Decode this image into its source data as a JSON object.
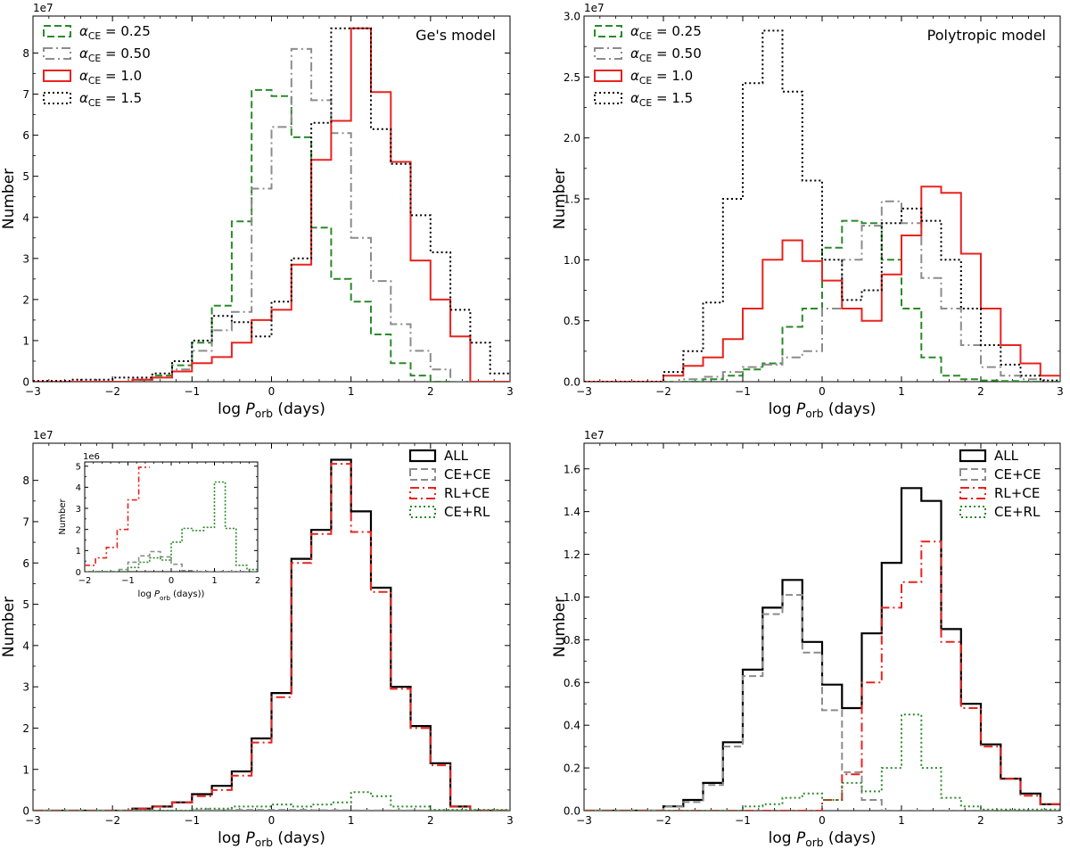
{
  "chart_data": [
    {
      "id": "top-left",
      "type": "step-histogram",
      "annotation": "Ge's model",
      "xlabel": "log  P_orb (days)",
      "ylabel": "Number",
      "y_offset_label": "1e7",
      "xlim": [
        -3,
        3
      ],
      "ylim": [
        0,
        8.9
      ],
      "xticks": [
        -3,
        -2,
        -1,
        0,
        1,
        2,
        3
      ],
      "xtick_labels": [
        "−3",
        "−2",
        "−1",
        "0",
        "1",
        "2",
        "3"
      ],
      "yticks": [
        0,
        1,
        2,
        3,
        4,
        5,
        6,
        7,
        8
      ],
      "ytick_labels": [
        "0",
        "1",
        "2",
        "3",
        "4",
        "5",
        "6",
        "7",
        "8"
      ],
      "legend_position": "top-left",
      "series": [
        {
          "name": "α_CE = 0.25",
          "label_base": "α",
          "label_sub": "CE",
          "label_tail": " = 0.25",
          "color": "#2a8a2a",
          "dash": "8,4",
          "width": 2,
          "edges": [
            -3,
            -1.75,
            -1.5,
            -1.25,
            -1,
            -0.75,
            -0.5,
            -0.25,
            0,
            0.25,
            0.5,
            0.75,
            1,
            1.25,
            1.5,
            1.75,
            2,
            3
          ],
          "values": [
            0,
            0.05,
            0.15,
            0.4,
            0.95,
            1.85,
            3.9,
            7.1,
            6.95,
            5.95,
            3.75,
            2.5,
            1.95,
            1.15,
            0.45,
            0.15,
            0
          ]
        },
        {
          "name": "α_CE = 0.50",
          "label_base": "α",
          "label_sub": "CE",
          "label_tail": " = 0.50",
          "color": "#8c8c8c",
          "dash": "10,4,2,4",
          "width": 2,
          "edges": [
            -3,
            -1.75,
            -1.5,
            -1.25,
            -1,
            -0.75,
            -0.5,
            -0.25,
            0,
            0.25,
            0.5,
            0.75,
            1,
            1.25,
            1.5,
            1.75,
            2,
            2.25,
            3
          ],
          "values": [
            0,
            0.05,
            0.1,
            0.3,
            0.75,
            1.25,
            1.7,
            4.7,
            6.2,
            8.1,
            6.85,
            6.05,
            3.5,
            2.45,
            1.4,
            0.75,
            0.3,
            0
          ]
        },
        {
          "name": "α_CE = 1.0",
          "label_base": "α",
          "label_sub": "CE",
          "label_tail": " = 1.0",
          "color": "#e8231f",
          "dash": "",
          "width": 2,
          "edges": [
            -3,
            -1.75,
            -1.5,
            -1.25,
            -1,
            -0.75,
            -0.5,
            -0.25,
            0,
            0.25,
            0.5,
            0.75,
            1,
            1.25,
            1.5,
            1.75,
            2,
            2.25,
            2.5,
            3
          ],
          "values": [
            0,
            0.05,
            0.1,
            0.25,
            0.45,
            0.6,
            0.95,
            1.5,
            1.75,
            2.85,
            5.4,
            6.35,
            8.6,
            7.05,
            5.35,
            2.95,
            2,
            1.1,
            0
          ]
        },
        {
          "name": "α_CE = 1.5",
          "label_base": "α",
          "label_sub": "CE",
          "label_tail": " = 1.5",
          "color": "#000000",
          "dash": "2,3",
          "width": 2,
          "edges": [
            -3,
            -2.5,
            -2,
            -1.5,
            -1.25,
            -1,
            -0.75,
            -0.5,
            -0.25,
            0,
            0.25,
            0.5,
            0.75,
            1,
            1.25,
            1.5,
            1.75,
            2,
            2.25,
            2.5,
            2.75,
            3
          ],
          "values": [
            0.02,
            0.05,
            0.1,
            0.2,
            0.5,
            1.0,
            1.6,
            1.45,
            1.1,
            1.95,
            3.0,
            6.3,
            8.6,
            8.6,
            6.15,
            5.3,
            4.05,
            3.15,
            1.75,
            0.95,
            0.2
          ]
        }
      ]
    },
    {
      "id": "top-right",
      "type": "step-histogram",
      "annotation": "Polytropic model",
      "xlabel": "log  P_orb (days)",
      "ylabel": "Number",
      "y_offset_label": "1e7",
      "xlim": [
        -3,
        3
      ],
      "ylim": [
        0,
        3.0
      ],
      "xticks": [
        -3,
        -2,
        -1,
        0,
        1,
        2,
        3
      ],
      "xtick_labels": [
        "−3",
        "−2",
        "−1",
        "0",
        "1",
        "2",
        "3"
      ],
      "yticks": [
        0,
        0.5,
        1.0,
        1.5,
        2.0,
        2.5,
        3.0
      ],
      "ytick_labels": [
        "0.0",
        "0.5",
        "1.0",
        "1.5",
        "2.0",
        "2.5",
        "3.0"
      ],
      "legend_position": "top-left",
      "series": [
        {
          "name": "α_CE = 0.25",
          "label_base": "α",
          "label_sub": "CE",
          "label_tail": " = 0.25",
          "color": "#2a8a2a",
          "dash": "8,4",
          "width": 2,
          "edges": [
            -3,
            -1.5,
            -1.25,
            -1,
            -0.75,
            -0.5,
            -0.25,
            0,
            0.25,
            0.5,
            0.75,
            1,
            1.25,
            1.5,
            1.75,
            2,
            2.25,
            2.5,
            3
          ],
          "values": [
            0,
            0.02,
            0.05,
            0.1,
            0.15,
            0.45,
            0.6,
            1.1,
            1.32,
            1.3,
            1.0,
            0.6,
            0.2,
            0.05,
            0.02,
            0.01,
            0.005,
            0
          ]
        },
        {
          "name": "α_CE = 0.50",
          "label_base": "α",
          "label_sub": "CE",
          "label_tail": " = 0.50",
          "color": "#8c8c8c",
          "dash": "10,4,2,4",
          "width": 2,
          "edges": [
            -3,
            -1.75,
            -1.5,
            -1.25,
            -1,
            -0.75,
            -0.5,
            -0.25,
            0,
            0.25,
            0.5,
            0.75,
            1,
            1.25,
            1.5,
            1.75,
            2,
            2.25,
            2.5,
            2.75,
            3
          ],
          "values": [
            0,
            0.02,
            0.04,
            0.08,
            0.12,
            0.14,
            0.2,
            0.25,
            0.6,
            1.0,
            1.28,
            1.48,
            1.3,
            0.85,
            0.6,
            0.3,
            0.12,
            0.05,
            0.02,
            0
          ]
        },
        {
          "name": "α_CE = 1.0",
          "label_base": "α",
          "label_sub": "CE",
          "label_tail": " = 1.0",
          "color": "#e8231f",
          "dash": "",
          "width": 2,
          "edges": [
            -3,
            -2,
            -1.75,
            -1.5,
            -1.25,
            -1,
            -0.75,
            -0.5,
            -0.25,
            0,
            0.25,
            0.5,
            0.75,
            1,
            1.25,
            1.5,
            1.75,
            2,
            2.25,
            2.5,
            2.75,
            3
          ],
          "values": [
            0,
            0.05,
            0.13,
            0.2,
            0.35,
            0.6,
            1.0,
            1.16,
            0.99,
            0.83,
            0.6,
            0.5,
            0.88,
            1.2,
            1.6,
            1.55,
            1.05,
            0.6,
            0.3,
            0.15,
            0.05
          ]
        },
        {
          "name": "α_CE = 1.5",
          "label_base": "α",
          "label_sub": "CE",
          "label_tail": " = 1.5",
          "color": "#000000",
          "dash": "2,3",
          "width": 2,
          "edges": [
            -3,
            -2,
            -1.75,
            -1.5,
            -1.25,
            -1,
            -0.75,
            -0.5,
            -0.25,
            0,
            0.25,
            0.5,
            0.75,
            1,
            1.25,
            1.5,
            1.75,
            2,
            2.25,
            2.5,
            2.75,
            3
          ],
          "values": [
            0,
            0.08,
            0.25,
            0.65,
            1.5,
            2.45,
            2.88,
            2.38,
            1.65,
            1.0,
            0.67,
            0.75,
            1.3,
            1.42,
            1.32,
            1.0,
            0.6,
            0.3,
            0.14,
            0.05,
            0.01
          ]
        }
      ]
    },
    {
      "id": "bottom-left",
      "type": "step-histogram",
      "xlabel": "log  P_orb (days)",
      "ylabel": "Number",
      "y_offset_label": "1e7",
      "xlim": [
        -3,
        3
      ],
      "ylim": [
        0,
        8.9
      ],
      "xticks": [
        -3,
        -2,
        -1,
        0,
        1,
        2,
        3
      ],
      "xtick_labels": [
        "−3",
        "−2",
        "−1",
        "0",
        "1",
        "2",
        "3"
      ],
      "yticks": [
        0,
        1,
        2,
        3,
        4,
        5,
        6,
        7,
        8
      ],
      "ytick_labels": [
        "0",
        "1",
        "2",
        "3",
        "4",
        "5",
        "6",
        "7",
        "8"
      ],
      "legend_position": "top-right",
      "series": [
        {
          "name": "ALL",
          "color": "#000000",
          "dash": "",
          "width": 2.2,
          "edges": [
            -3,
            -1.75,
            -1.5,
            -1.25,
            -1,
            -0.75,
            -0.5,
            -0.25,
            0,
            0.25,
            0.5,
            0.75,
            1,
            1.25,
            1.5,
            1.75,
            2,
            2.25,
            2.5,
            3
          ],
          "values": [
            0,
            0.05,
            0.1,
            0.2,
            0.4,
            0.6,
            0.95,
            1.75,
            2.85,
            6.1,
            6.8,
            8.5,
            7.25,
            5.4,
            3.0,
            2.05,
            1.15,
            0.1,
            0
          ]
        },
        {
          "name": "CE+CE",
          "color": "#8c8c8c",
          "dash": "8,4",
          "width": 2,
          "edges": [
            -3,
            -1,
            -0.5,
            0,
            0.5,
            1,
            3
          ],
          "values": [
            0,
            0.01,
            0.02,
            0.02,
            0.01,
            0.005
          ]
        },
        {
          "name": "RL+CE",
          "color": "#e8231f",
          "dash": "10,4,2,4",
          "width": 2,
          "edges": [
            -3,
            -1.75,
            -1.5,
            -1.25,
            -1,
            -0.75,
            -0.5,
            -0.25,
            0,
            0.25,
            0.5,
            0.75,
            1,
            1.25,
            1.5,
            1.75,
            2,
            2.25,
            2.5,
            3
          ],
          "values": [
            0,
            0.05,
            0.1,
            0.2,
            0.35,
            0.5,
            0.85,
            1.65,
            2.75,
            6.0,
            6.7,
            8.4,
            6.75,
            5.3,
            2.95,
            2.0,
            1.1,
            0.1,
            0
          ]
        },
        {
          "name": "CE+RL",
          "color": "#2a8a2a",
          "dash": "2,3",
          "width": 2,
          "edges": [
            -3,
            -1,
            -0.5,
            0,
            0.25,
            0.5,
            0.75,
            1,
            1.25,
            1.5,
            2,
            3
          ],
          "values": [
            0,
            0.05,
            0.1,
            0.15,
            0.1,
            0.15,
            0.2,
            0.45,
            0.35,
            0.1,
            0.02
          ]
        }
      ],
      "inset": {
        "xlabel": "log  P_orb (days))",
        "ylabel": "Number",
        "y_offset_label": "1e6",
        "xlim": [
          -2,
          2
        ],
        "ylim": [
          0,
          5.2
        ],
        "xticks": [
          -2,
          -1,
          0,
          1,
          2
        ],
        "xtick_labels": [
          "−2",
          "−1",
          "0",
          "1",
          "2"
        ],
        "yticks": [
          0,
          1,
          2,
          3,
          4,
          5
        ],
        "ytick_labels": [
          "0",
          "1",
          "2",
          "3",
          "4",
          "5"
        ],
        "series": [
          {
            "name": "RL+CE",
            "color": "#e8231f",
            "dash": "6,3,2,3",
            "width": 1.6,
            "edges": [
              -2,
              -1.75,
              -1.5,
              -1.25,
              -1,
              -0.75,
              -0.5
            ],
            "values": [
              0.3,
              0.65,
              1.15,
              2.0,
              3.4,
              4.95
            ]
          },
          {
            "name": "CE+CE",
            "color": "#8c8c8c",
            "dash": "5,3",
            "width": 1.6,
            "edges": [
              -2,
              -1.25,
              -1,
              -0.75,
              -0.5,
              -0.25,
              0,
              0.25,
              0.5,
              2
            ],
            "values": [
              0,
              0.1,
              0.45,
              0.75,
              0.95,
              0.7,
              0.35,
              0.05,
              0
            ]
          },
          {
            "name": "CE+RL",
            "color": "#2a8a2a",
            "dash": "2,2",
            "width": 1.6,
            "edges": [
              -2,
              -1,
              -0.75,
              -0.5,
              -0.25,
              0,
              0.25,
              0.5,
              0.75,
              1,
              1.25,
              1.5,
              1.75,
              2
            ],
            "values": [
              0,
              0.2,
              0.45,
              0.65,
              0.55,
              1.4,
              2.05,
              1.95,
              2.1,
              4.25,
              2.05,
              0.3,
              0.1
            ]
          }
        ]
      }
    },
    {
      "id": "bottom-right",
      "type": "step-histogram",
      "xlabel": "log  P_orb (days)",
      "ylabel": "Number",
      "y_offset_label": "1e7",
      "xlim": [
        -3,
        3
      ],
      "ylim": [
        0,
        1.72
      ],
      "xticks": [
        -3,
        -2,
        -1,
        0,
        1,
        2,
        3
      ],
      "xtick_labels": [
        "−3",
        "−2",
        "−1",
        "0",
        "1",
        "2",
        "3"
      ],
      "yticks": [
        0,
        0.2,
        0.4,
        0.6,
        0.8,
        1.0,
        1.2,
        1.4,
        1.6
      ],
      "ytick_labels": [
        "0.0",
        "0.2",
        "0.4",
        "0.6",
        "0.8",
        "1.0",
        "1.2",
        "1.4",
        "1.6"
      ],
      "legend_position": "top-right",
      "series": [
        {
          "name": "ALL",
          "color": "#000000",
          "dash": "",
          "width": 2.2,
          "edges": [
            -3,
            -2,
            -1.75,
            -1.5,
            -1.25,
            -1,
            -0.75,
            -0.5,
            -0.25,
            0,
            0.25,
            0.5,
            0.75,
            1,
            1.25,
            1.5,
            1.75,
            2,
            2.25,
            2.5,
            2.75,
            3
          ],
          "values": [
            0,
            0.02,
            0.05,
            0.13,
            0.32,
            0.66,
            0.95,
            1.08,
            0.79,
            0.59,
            0.48,
            0.83,
            1.16,
            1.51,
            1.45,
            0.85,
            0.5,
            0.31,
            0.15,
            0.08,
            0.03
          ]
        },
        {
          "name": "CE+CE",
          "color": "#8c8c8c",
          "dash": "8,4",
          "width": 2,
          "edges": [
            -3,
            -2,
            -1.75,
            -1.5,
            -1.25,
            -1,
            -0.75,
            -0.5,
            -0.25,
            0,
            0.25,
            0.5,
            0.75,
            3
          ],
          "values": [
            0,
            0.02,
            0.04,
            0.12,
            0.3,
            0.63,
            0.92,
            1.01,
            0.74,
            0.47,
            0.18,
            0.05,
            0
          ]
        },
        {
          "name": "RL+CE",
          "color": "#e8231f",
          "dash": "10,4,2,4",
          "width": 2,
          "edges": [
            -3,
            0,
            0.25,
            0.5,
            0.75,
            1,
            1.25,
            1.5,
            1.75,
            2,
            2.25,
            2.5,
            2.75,
            3
          ],
          "values": [
            0,
            0.05,
            0.17,
            0.6,
            0.95,
            1.07,
            1.26,
            0.79,
            0.48,
            0.3,
            0.15,
            0.07,
            0.03
          ]
        },
        {
          "name": "CE+RL",
          "color": "#2a8a2a",
          "dash": "2,3",
          "width": 2,
          "edges": [
            -3,
            -1,
            -0.75,
            -0.5,
            -0.25,
            0,
            0.25,
            0.5,
            0.75,
            1,
            1.25,
            1.5,
            1.75,
            2,
            3
          ],
          "values": [
            0,
            0.02,
            0.03,
            0.06,
            0.08,
            0.05,
            0.13,
            0.09,
            0.2,
            0.45,
            0.2,
            0.06,
            0.02,
            0.005
          ]
        }
      ]
    }
  ]
}
